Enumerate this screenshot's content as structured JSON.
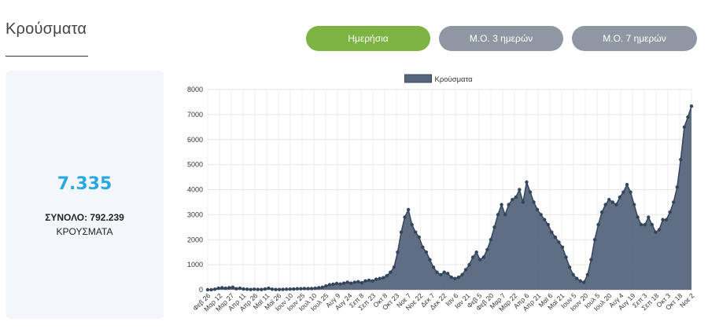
{
  "page": {
    "title": "Κρούσματα"
  },
  "toggles": [
    {
      "label": "Ημερήσια",
      "active": true
    },
    {
      "label": "Μ.Ο. 3 ημερών",
      "active": false
    },
    {
      "label": "Μ.Ο. 7 ημερών",
      "active": false
    }
  ],
  "colors": {
    "active": "#7cb342",
    "inactive": "#8e97a3",
    "accent": "#29a8e0",
    "series_fill": "#56667b",
    "series_line": "#34455c"
  },
  "stats": {
    "value": "7.335",
    "total": "ΣΥΝΟΛΟ: 792.239",
    "unit": "ΚΡΟΥΣΜΑΤΑ"
  },
  "chart_data": {
    "type": "area",
    "legend": {
      "label": "Κρούσματα",
      "position": "top-center"
    },
    "xlabels": [
      "Φεβ 26",
      "Μαρ 12",
      "Μαρ 27",
      "Απρ 11",
      "Απρ 26",
      "Μαϊ 11",
      "Μαϊ 26",
      "Ιουν 10",
      "Ιουν 25",
      "Ιουλ 10",
      "Ιουλ 25",
      "Αυγ 9",
      "Αυγ 24",
      "Σεπ 8",
      "Σεπ 23",
      "Οκτ 8",
      "Οκτ 23",
      "Νοε 7",
      "Νοε 22",
      "Δεκ 7",
      "Δεκ 22",
      "Ιαν 6",
      "Ιαν 21",
      "Φεβ 5",
      "Φεβ 20",
      "Μαρ 7",
      "Μαρ 22",
      "Απρ 6",
      "Απρ 21",
      "Μαϊ 6",
      "Μαϊ 21",
      "Ιουν 5",
      "Ιουν 20",
      "Ιουλ 5",
      "Ιουλ 20",
      "Αυγ 4",
      "Αυγ 19",
      "Σεπ 3",
      "Σεπ 18",
      "Οκτ 3",
      "Οκτ 18",
      "Νοε 2"
    ],
    "yticks": [
      0,
      1000,
      2000,
      3000,
      4000,
      5000,
      6000,
      7000,
      8000
    ],
    "ylim": [
      0,
      8000
    ],
    "grid": true,
    "values": [
      0,
      0,
      20,
      60,
      80,
      60,
      80,
      100,
      40,
      60,
      30,
      20,
      10,
      20,
      15,
      10,
      30,
      60,
      20,
      10,
      10,
      15,
      20,
      25,
      30,
      40,
      40,
      50,
      45,
      50,
      60,
      80,
      100,
      150,
      200,
      220,
      250,
      230,
      260,
      300,
      260,
      300,
      320,
      280,
      350,
      380,
      350,
      420,
      450,
      480,
      560,
      700,
      900,
      1500,
      2300,
      2900,
      3200,
      2600,
      2300,
      2100,
      1700,
      1500,
      1200,
      900,
      700,
      600,
      700,
      650,
      500,
      450,
      500,
      600,
      800,
      1000,
      1300,
      1500,
      1200,
      1300,
      1600,
      2000,
      2500,
      3000,
      3400,
      3000,
      3400,
      3600,
      3700,
      4000,
      3500,
      4300,
      3900,
      3500,
      3200,
      3000,
      2800,
      2600,
      2300,
      2100,
      1900,
      1700,
      1300,
      900,
      600,
      450,
      350,
      300,
      600,
      1200,
      2000,
      2600,
      3100,
      3400,
      3600,
      3500,
      3400,
      3700,
      3900,
      4200,
      3900,
      3400,
      2900,
      2600,
      2600,
      2900,
      2600,
      2300,
      2400,
      2800,
      2800,
      3100,
      3500,
      4100,
      5200,
      6500,
      6900,
      7335
    ]
  }
}
